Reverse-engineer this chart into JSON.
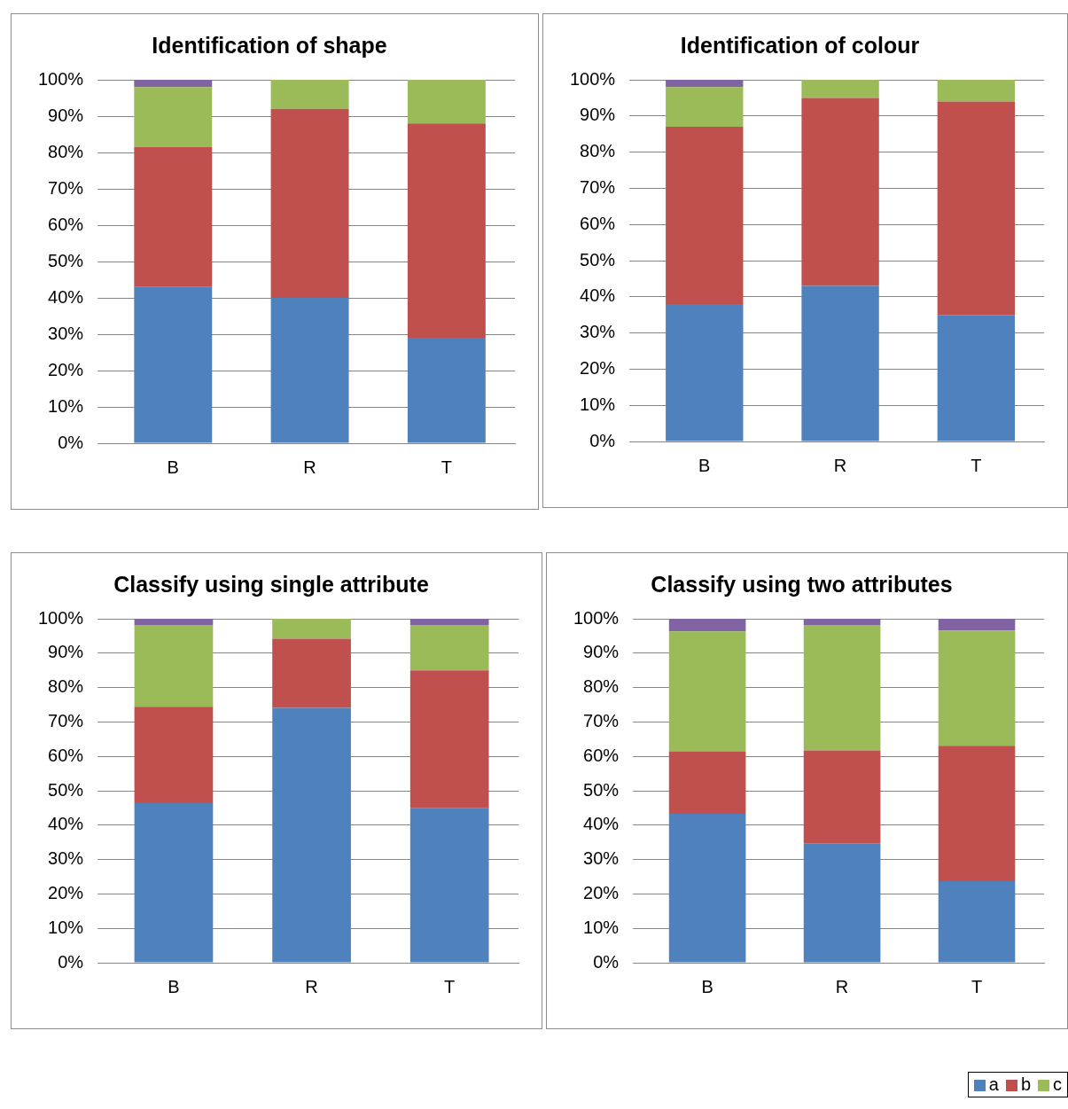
{
  "chart_data": [
    {
      "type": "bar",
      "title": "Identification of shape",
      "categories": [
        "B",
        "R",
        "T"
      ],
      "stacked": true,
      "ylim": [
        0,
        100
      ],
      "yticks": [
        {
          "value": 0,
          "label": "0%"
        },
        {
          "value": 10,
          "label": "10%"
        },
        {
          "value": 20,
          "label": "20%"
        },
        {
          "value": 30,
          "label": "30%"
        },
        {
          "value": 40,
          "label": "40%"
        },
        {
          "value": 50,
          "label": "50%"
        },
        {
          "value": 60,
          "label": "60%"
        },
        {
          "value": 70,
          "label": "70%"
        },
        {
          "value": 80,
          "label": "80%"
        },
        {
          "value": 90,
          "label": "90%"
        },
        {
          "value": 100,
          "label": "100%"
        }
      ],
      "grid": "y",
      "series": [
        {
          "color": "#4f81bd",
          "values": [
            43,
            40,
            29
          ]
        },
        {
          "color": "#c0504d",
          "values": [
            38.5,
            52,
            59
          ]
        },
        {
          "color": "#9bbb59",
          "values": [
            16.5,
            8,
            12
          ]
        },
        {
          "color": "#8064a2",
          "values": [
            2,
            0,
            0
          ]
        }
      ]
    },
    {
      "type": "bar",
      "title": "Identification of colour",
      "categories": [
        "B",
        "R",
        "T"
      ],
      "stacked": true,
      "ylim": [
        0,
        100
      ],
      "yticks": [
        {
          "value": 0,
          "label": "0%"
        },
        {
          "value": 10,
          "label": "10%"
        },
        {
          "value": 20,
          "label": "20%"
        },
        {
          "value": 30,
          "label": "30%"
        },
        {
          "value": 40,
          "label": "40%"
        },
        {
          "value": 50,
          "label": "50%"
        },
        {
          "value": 60,
          "label": "60%"
        },
        {
          "value": 70,
          "label": "70%"
        },
        {
          "value": 80,
          "label": "80%"
        },
        {
          "value": 90,
          "label": "90%"
        },
        {
          "value": 100,
          "label": "100%"
        }
      ],
      "grid": "y",
      "series": [
        {
          "color": "#4f81bd",
          "values": [
            38,
            43,
            35
          ]
        },
        {
          "color": "#c0504d",
          "values": [
            49,
            52,
            59
          ]
        },
        {
          "color": "#9bbb59",
          "values": [
            11,
            5,
            6
          ]
        },
        {
          "color": "#8064a2",
          "values": [
            2,
            0,
            0
          ]
        }
      ]
    },
    {
      "type": "bar",
      "title": "Classify using single attribute",
      "categories": [
        "B",
        "R",
        "T"
      ],
      "stacked": true,
      "ylim": [
        0,
        100
      ],
      "yticks": [
        {
          "value": 0,
          "label": "0%"
        },
        {
          "value": 10,
          "label": "10%"
        },
        {
          "value": 20,
          "label": "20%"
        },
        {
          "value": 30,
          "label": "30%"
        },
        {
          "value": 40,
          "label": "40%"
        },
        {
          "value": 50,
          "label": "50%"
        },
        {
          "value": 60,
          "label": "60%"
        },
        {
          "value": 70,
          "label": "70%"
        },
        {
          "value": 80,
          "label": "80%"
        },
        {
          "value": 90,
          "label": "90%"
        },
        {
          "value": 100,
          "label": "100%"
        }
      ],
      "grid": "y",
      "series": [
        {
          "color": "#4f81bd",
          "values": [
            46.4,
            74.1,
            44.9
          ]
        },
        {
          "color": "#c0504d",
          "values": [
            28,
            20.1,
            40.1
          ]
        },
        {
          "color": "#9bbb59",
          "values": [
            23.8,
            5.8,
            13.2
          ]
        },
        {
          "color": "#8064a2",
          "values": [
            1.8,
            0,
            1.8
          ]
        }
      ]
    },
    {
      "type": "bar",
      "title": "Classify using two attributes",
      "categories": [
        "B",
        "R",
        "T"
      ],
      "stacked": true,
      "ylim": [
        0,
        100
      ],
      "yticks": [
        {
          "value": 0,
          "label": "0%"
        },
        {
          "value": 10,
          "label": "10%"
        },
        {
          "value": 20,
          "label": "20%"
        },
        {
          "value": 30,
          "label": "30%"
        },
        {
          "value": 40,
          "label": "40%"
        },
        {
          "value": 50,
          "label": "50%"
        },
        {
          "value": 60,
          "label": "60%"
        },
        {
          "value": 70,
          "label": "70%"
        },
        {
          "value": 80,
          "label": "80%"
        },
        {
          "value": 90,
          "label": "90%"
        },
        {
          "value": 100,
          "label": "100%"
        }
      ],
      "grid": "y",
      "legend": "bottom right",
      "series": [
        {
          "name": "a",
          "color": "#4f81bd",
          "values": [
            43.3,
            34.6,
            23.7
          ]
        },
        {
          "name": "b",
          "color": "#c0504d",
          "values": [
            18.2,
            27.1,
            39.4
          ]
        },
        {
          "name": "c",
          "color": "#9bbb59",
          "values": [
            34.8,
            36.5,
            33.5
          ]
        },
        {
          "color": "#8064a2",
          "values": [
            3.7,
            1.8,
            3.4
          ]
        }
      ]
    }
  ]
}
